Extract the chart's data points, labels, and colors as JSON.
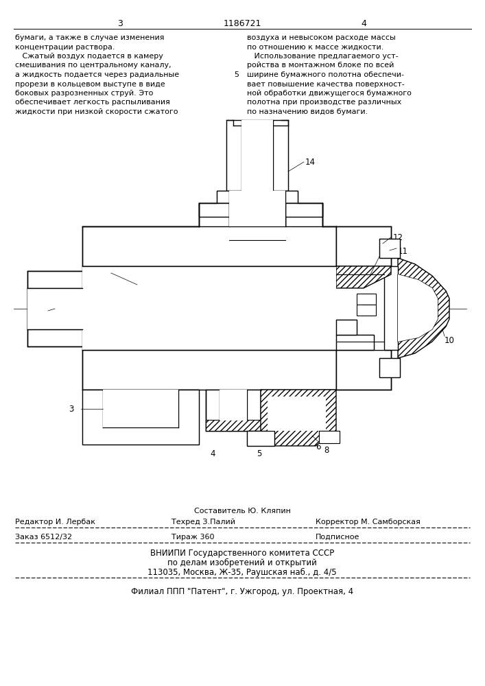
{
  "page_number_left": "3",
  "patent_number": "1186721",
  "page_number_right": "4",
  "text_left": [
    "бумаги, а также в случае изменения",
    "концентрации раствора.",
    "   Сжатый воздух подается в камеру",
    "смешивания по центральному каналу,",
    "а жидкость подается через радиальные",
    "прорези в кольцевом выступе в виде",
    "боковых разрозненных струй. Это",
    "обеспечивает легкость распыливания",
    "жидкости при низкой скорости сжатого"
  ],
  "text_right": [
    "воздуха и невысоком расходе массы",
    "по отношению к массе жидкости.",
    "   Использование предлагаемого уст-",
    "ройства в монтажном блоке по всей",
    "ширине бумажного полотна обеспечи-",
    "вает повышение качества поверхност-",
    "ной обработки движущегося бумажного",
    "полотна при производстве различных",
    "по назначению видов бумаги."
  ],
  "footer_line1_col1": "Составитель Ю. Кляпин",
  "footer_line2_col1": "Редактор И. Лербак",
  "footer_line2_col2": "Техред З.Палий",
  "footer_line2_col3": "Корректор М. Самборская",
  "footer_line3_col1": "Заказ 6512/32",
  "footer_line3_col2": "Тираж 360",
  "footer_line3_col3": "Подписное",
  "vnipi_line1": "ВНИИПИ Государственного комитета СССР",
  "vnipi_line2": "по делам изобретений и открытий",
  "vnipi_line3": "113035, Москва, Ж-35, Раушская наб., д. 4/5",
  "filial_line": "Филиал ППП \"Патент\", г. Ужгород, ул. Проектная, 4",
  "bg_color": "#ffffff",
  "text_color": "#000000"
}
